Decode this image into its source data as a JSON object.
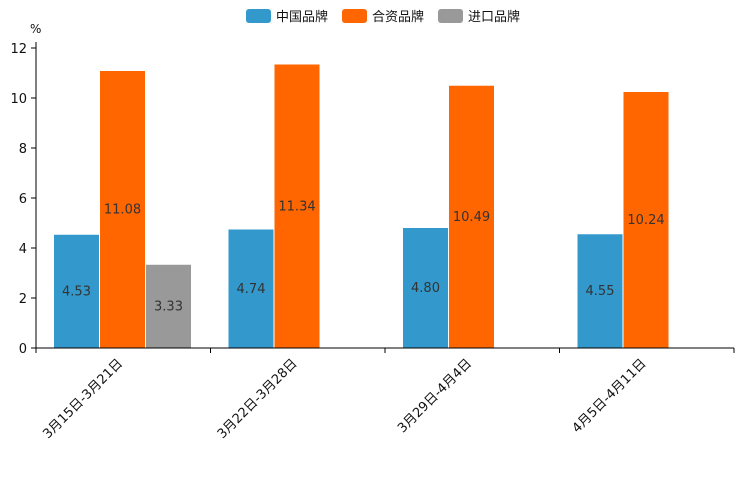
{
  "chart_data": {
    "type": "bar",
    "title": "",
    "xlabel": "",
    "ylabel": "%",
    "ylim": [
      0,
      12
    ],
    "yticks": [
      0,
      2,
      4,
      6,
      8,
      10,
      12
    ],
    "categories": [
      "3月15日-3月21日",
      "3月22日-3月28日",
      "3月29日-4月4日",
      "4月5日-4月11日"
    ],
    "series": [
      {
        "name": "中国品牌",
        "color": "#3399cc",
        "values": [
          4.53,
          4.74,
          4.8,
          4.55
        ],
        "labels": [
          "4.53",
          "4.74",
          "4.80",
          "4.55"
        ]
      },
      {
        "name": "合资品牌",
        "color": "#ff6600",
        "values": [
          11.08,
          11.34,
          10.49,
          10.24
        ],
        "labels": [
          "11.08",
          "11.34",
          "10.49",
          "10.24"
        ]
      },
      {
        "name": "进口品牌",
        "color": "#999999",
        "values": [
          3.33,
          null,
          null,
          null
        ],
        "labels": [
          "3.33",
          "",
          "",
          ""
        ]
      }
    ],
    "legend_position": "top-center",
    "grid": false
  }
}
